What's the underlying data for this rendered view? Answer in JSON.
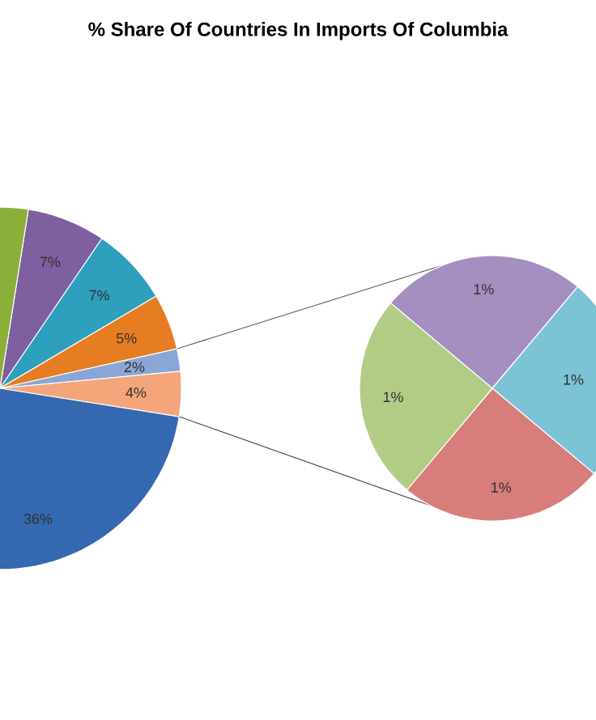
{
  "chart_data": [
    {
      "type": "pie",
      "title": "% Share Of Countries In Imports Of Columbia",
      "categories": [
        null,
        null,
        null,
        null,
        null,
        null,
        null
      ],
      "values": [
        7,
        7,
        5,
        2,
        4,
        36,
        39
      ],
      "value_labels": [
        "7%",
        "7%",
        "5%",
        "2%",
        "4%",
        "36%",
        null
      ],
      "colors": [
        "#7e5fa0",
        "#2e9fbd",
        "#e77d22",
        "#8aa6d6",
        "#f4a57a",
        "#3468b0",
        "#8bb03a"
      ]
    },
    {
      "type": "pie",
      "categories": [
        null,
        null,
        null,
        null
      ],
      "values": [
        1,
        1,
        1,
        1
      ],
      "value_labels": [
        "1%",
        "1%",
        "1%",
        "1%"
      ],
      "colors": [
        "#a48fc0",
        "#7cc3d6",
        "#d77d7c",
        "#b3cc85"
      ]
    }
  ]
}
